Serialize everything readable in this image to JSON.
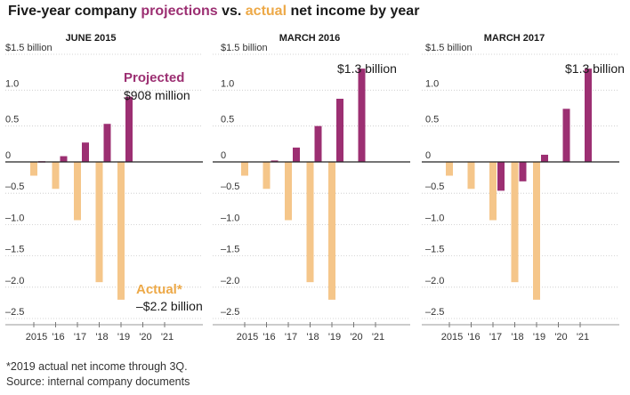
{
  "title": {
    "prefix": "Five-year company ",
    "projected_word": "projections",
    "middle": " vs. ",
    "actual_word": "actual",
    "suffix": " net income by year"
  },
  "colors": {
    "projected": "#9c2f72",
    "actual": "#f5c68a",
    "actual_text": "#eda948",
    "axis": "#333333"
  },
  "footnote": {
    "line1": "*2019 actual net income through 3Q.",
    "line2": "Source: internal company documents"
  },
  "chart_data": [
    {
      "type": "bar",
      "title": "JUNE 2015",
      "categories": [
        "2015",
        "'16",
        "'17",
        "'18",
        "'19",
        "'20",
        "'21"
      ],
      "series": [
        {
          "name": "Actual*",
          "values": [
            -0.22,
            -0.43,
            -0.93,
            -1.92,
            -2.2,
            null,
            null
          ]
        },
        {
          "name": "Projected",
          "values": [
            0.01,
            0.08,
            0.27,
            0.53,
            0.908,
            null,
            null
          ]
        }
      ],
      "ylim": [
        -2.5,
        1.5
      ],
      "yticks": [
        "$1.5 billion",
        "1.0",
        "0.5",
        "0",
        "-0.5",
        "-1.0",
        "-1.5",
        "-2.0",
        "-2.5"
      ],
      "annotations": [
        {
          "label": "Projected",
          "text": "$908 million"
        },
        {
          "label": "Actual*",
          "text": "–$2.2 billion"
        }
      ]
    },
    {
      "type": "bar",
      "title": "MARCH 2016",
      "categories": [
        "2015",
        "'16",
        "'17",
        "'18",
        "'19",
        "'20",
        "'21"
      ],
      "series": [
        {
          "name": "Actual*",
          "values": [
            -0.22,
            -0.43,
            -0.93,
            -1.92,
            -2.2,
            null,
            null
          ]
        },
        {
          "name": "Projected",
          "values": [
            null,
            0.02,
            0.2,
            0.5,
            0.88,
            1.3,
            null
          ]
        }
      ],
      "ylim": [
        -2.5,
        1.5
      ],
      "yticks": [
        "$1.5 billion",
        "1.0",
        "0.5",
        "0",
        "-0.5",
        "-1.0",
        "-1.5",
        "-2.0",
        "-2.5"
      ],
      "annotations": [
        {
          "text": "$1.3 billion"
        }
      ]
    },
    {
      "type": "bar",
      "title": "MARCH 2017",
      "categories": [
        "2015",
        "'16",
        "'17",
        "'18",
        "'19",
        "'20",
        "'21"
      ],
      "series": [
        {
          "name": "Actual*",
          "values": [
            -0.22,
            -0.43,
            -0.93,
            -1.92,
            -2.2,
            null,
            null
          ]
        },
        {
          "name": "Projected",
          "values": [
            null,
            null,
            -0.46,
            -0.31,
            0.1,
            0.74,
            1.3
          ]
        }
      ],
      "ylim": [
        -2.5,
        1.5
      ],
      "yticks": [
        "$1.5 billion",
        "1.0",
        "0.5",
        "0",
        "-0.5",
        "-1.0",
        "-1.5",
        "-2.0",
        "-2.5"
      ],
      "annotations": [
        {
          "text": "$1.3 billion"
        }
      ]
    }
  ]
}
